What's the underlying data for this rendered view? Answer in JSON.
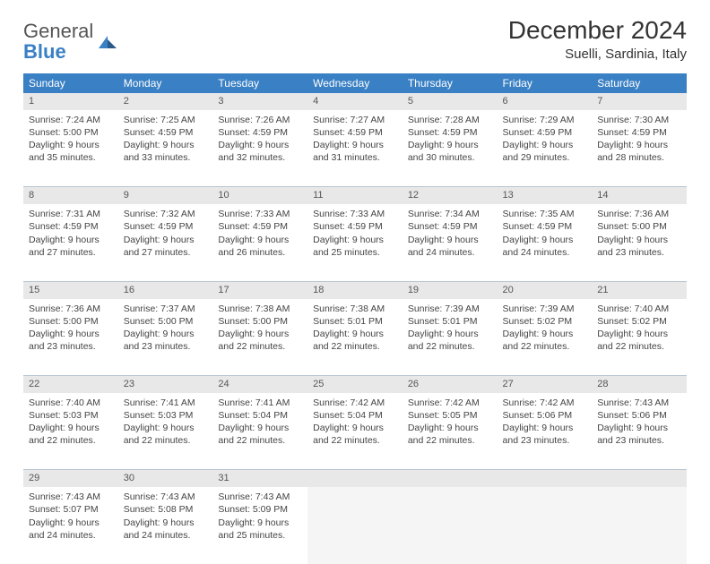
{
  "logo": {
    "general": "General",
    "blue": "Blue"
  },
  "title": "December 2024",
  "location": "Suelli, Sardinia, Italy",
  "headers": [
    "Sunday",
    "Monday",
    "Tuesday",
    "Wednesday",
    "Thursday",
    "Friday",
    "Saturday"
  ],
  "colors": {
    "header_bg": "#3a80c4",
    "header_fg": "#ffffff",
    "daynum_bg": "#e8e8e8",
    "border": "#b8c5d0",
    "logo_blue": "#3a80c4"
  },
  "weeks": [
    [
      {
        "n": "1",
        "sr": "7:24 AM",
        "ss": "5:00 PM",
        "dl": "9 hours and 35 minutes."
      },
      {
        "n": "2",
        "sr": "7:25 AM",
        "ss": "4:59 PM",
        "dl": "9 hours and 33 minutes."
      },
      {
        "n": "3",
        "sr": "7:26 AM",
        "ss": "4:59 PM",
        "dl": "9 hours and 32 minutes."
      },
      {
        "n": "4",
        "sr": "7:27 AM",
        "ss": "4:59 PM",
        "dl": "9 hours and 31 minutes."
      },
      {
        "n": "5",
        "sr": "7:28 AM",
        "ss": "4:59 PM",
        "dl": "9 hours and 30 minutes."
      },
      {
        "n": "6",
        "sr": "7:29 AM",
        "ss": "4:59 PM",
        "dl": "9 hours and 29 minutes."
      },
      {
        "n": "7",
        "sr": "7:30 AM",
        "ss": "4:59 PM",
        "dl": "9 hours and 28 minutes."
      }
    ],
    [
      {
        "n": "8",
        "sr": "7:31 AM",
        "ss": "4:59 PM",
        "dl": "9 hours and 27 minutes."
      },
      {
        "n": "9",
        "sr": "7:32 AM",
        "ss": "4:59 PM",
        "dl": "9 hours and 27 minutes."
      },
      {
        "n": "10",
        "sr": "7:33 AM",
        "ss": "4:59 PM",
        "dl": "9 hours and 26 minutes."
      },
      {
        "n": "11",
        "sr": "7:33 AM",
        "ss": "4:59 PM",
        "dl": "9 hours and 25 minutes."
      },
      {
        "n": "12",
        "sr": "7:34 AM",
        "ss": "4:59 PM",
        "dl": "9 hours and 24 minutes."
      },
      {
        "n": "13",
        "sr": "7:35 AM",
        "ss": "4:59 PM",
        "dl": "9 hours and 24 minutes."
      },
      {
        "n": "14",
        "sr": "7:36 AM",
        "ss": "5:00 PM",
        "dl": "9 hours and 23 minutes."
      }
    ],
    [
      {
        "n": "15",
        "sr": "7:36 AM",
        "ss": "5:00 PM",
        "dl": "9 hours and 23 minutes."
      },
      {
        "n": "16",
        "sr": "7:37 AM",
        "ss": "5:00 PM",
        "dl": "9 hours and 23 minutes."
      },
      {
        "n": "17",
        "sr": "7:38 AM",
        "ss": "5:00 PM",
        "dl": "9 hours and 22 minutes."
      },
      {
        "n": "18",
        "sr": "7:38 AM",
        "ss": "5:01 PM",
        "dl": "9 hours and 22 minutes."
      },
      {
        "n": "19",
        "sr": "7:39 AM",
        "ss": "5:01 PM",
        "dl": "9 hours and 22 minutes."
      },
      {
        "n": "20",
        "sr": "7:39 AM",
        "ss": "5:02 PM",
        "dl": "9 hours and 22 minutes."
      },
      {
        "n": "21",
        "sr": "7:40 AM",
        "ss": "5:02 PM",
        "dl": "9 hours and 22 minutes."
      }
    ],
    [
      {
        "n": "22",
        "sr": "7:40 AM",
        "ss": "5:03 PM",
        "dl": "9 hours and 22 minutes."
      },
      {
        "n": "23",
        "sr": "7:41 AM",
        "ss": "5:03 PM",
        "dl": "9 hours and 22 minutes."
      },
      {
        "n": "24",
        "sr": "7:41 AM",
        "ss": "5:04 PM",
        "dl": "9 hours and 22 minutes."
      },
      {
        "n": "25",
        "sr": "7:42 AM",
        "ss": "5:04 PM",
        "dl": "9 hours and 22 minutes."
      },
      {
        "n": "26",
        "sr": "7:42 AM",
        "ss": "5:05 PM",
        "dl": "9 hours and 22 minutes."
      },
      {
        "n": "27",
        "sr": "7:42 AM",
        "ss": "5:06 PM",
        "dl": "9 hours and 23 minutes."
      },
      {
        "n": "28",
        "sr": "7:43 AM",
        "ss": "5:06 PM",
        "dl": "9 hours and 23 minutes."
      }
    ],
    [
      {
        "n": "29",
        "sr": "7:43 AM",
        "ss": "5:07 PM",
        "dl": "9 hours and 24 minutes."
      },
      {
        "n": "30",
        "sr": "7:43 AM",
        "ss": "5:08 PM",
        "dl": "9 hours and 24 minutes."
      },
      {
        "n": "31",
        "sr": "7:43 AM",
        "ss": "5:09 PM",
        "dl": "9 hours and 25 minutes."
      },
      null,
      null,
      null,
      null
    ]
  ],
  "labels": {
    "sunrise": "Sunrise:",
    "sunset": "Sunset:",
    "daylight": "Daylight:"
  }
}
